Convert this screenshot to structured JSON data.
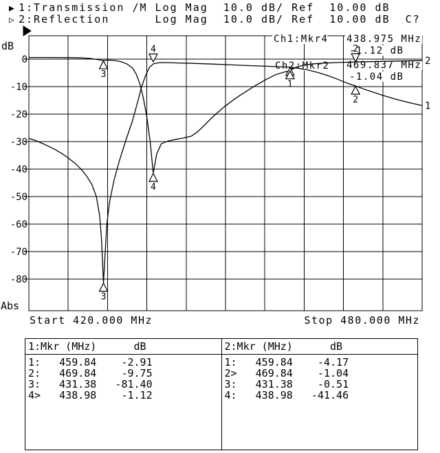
{
  "title_area": {
    "line1": {
      "marker": "▶",
      "text": "1:Transmission /M Log Mag  10.0 dB/ Ref  10.00 dB"
    },
    "line2": {
      "marker": "▷",
      "text": "2:Reflection      Log Mag  10.0 dB/ Ref  10.00 dB  C?"
    }
  },
  "readout": {
    "ch1": {
      "label": "Ch1:Mkr4",
      "freq": "438.975 MHz",
      "value": "-1.12 dB"
    },
    "ch2": {
      "label": "Ch2:Mkr2",
      "freq": "469.837 MHz",
      "value": "-1.04 dB"
    }
  },
  "axis": {
    "y_unit": "dB",
    "y_bottom": "Abs",
    "start_label": "Start 420.000 MHz",
    "stop_label": "Stop 480.000 MHz"
  },
  "chart_data": {
    "type": "line",
    "x": {
      "min": 420,
      "max": 480,
      "unit": "MHz",
      "divisions": 10
    },
    "y": {
      "ticks": [
        0,
        -10,
        -20,
        -30,
        -40,
        -50,
        -60,
        -70,
        -80
      ],
      "db_per_div": 10,
      "ref_db": 10
    },
    "series": [
      {
        "name": "1: Transmission",
        "end_label": "1",
        "points": [
          [
            420,
            -28.8
          ],
          [
            421,
            -29.6
          ],
          [
            422,
            -30.6
          ],
          [
            423,
            -31.7
          ],
          [
            424,
            -32.9
          ],
          [
            425,
            -34.3
          ],
          [
            426,
            -35.9
          ],
          [
            427,
            -37.8
          ],
          [
            428,
            -40.1
          ],
          [
            428.8,
            -42.5
          ],
          [
            429.6,
            -45.5
          ],
          [
            430.3,
            -50
          ],
          [
            430.8,
            -57
          ],
          [
            431.1,
            -66
          ],
          [
            431.38,
            -81.4
          ],
          [
            431.65,
            -70
          ],
          [
            431.9,
            -60
          ],
          [
            432.3,
            -52
          ],
          [
            433,
            -44
          ],
          [
            433.8,
            -37
          ],
          [
            434.8,
            -29.5
          ],
          [
            435.8,
            -22.5
          ],
          [
            436.6,
            -15.5
          ],
          [
            437.2,
            -10
          ],
          [
            437.8,
            -6
          ],
          [
            438.4,
            -3
          ],
          [
            439,
            -1.7
          ],
          [
            440,
            -1.25
          ],
          [
            442,
            -1.35
          ],
          [
            445,
            -1.55
          ],
          [
            448,
            -1.8
          ],
          [
            451,
            -2.1
          ],
          [
            454,
            -2.4
          ],
          [
            457,
            -2.65
          ],
          [
            459.84,
            -2.91
          ],
          [
            461,
            -3.3
          ],
          [
            462.5,
            -3.9
          ],
          [
            464,
            -4.8
          ],
          [
            465.5,
            -5.9
          ],
          [
            467,
            -7.2
          ],
          [
            468.5,
            -8.7
          ],
          [
            469.84,
            -9.75
          ],
          [
            471,
            -10.8
          ],
          [
            472.5,
            -12
          ],
          [
            474,
            -13.2
          ],
          [
            476,
            -14.6
          ],
          [
            478,
            -15.8
          ],
          [
            480,
            -16.9
          ]
        ]
      },
      {
        "name": "2: Reflection",
        "end_label": "2",
        "points": [
          [
            420,
            0.6
          ],
          [
            423,
            0.6
          ],
          [
            426,
            0.55
          ],
          [
            428,
            0.45
          ],
          [
            429.5,
            0.2
          ],
          [
            430.4,
            -0.15
          ],
          [
            431.38,
            -0.51
          ],
          [
            432.2,
            -0.35
          ],
          [
            433,
            -0.5
          ],
          [
            434,
            -0.9
          ],
          [
            435,
            -1.8
          ],
          [
            435.8,
            -3.2
          ],
          [
            436.4,
            -5.5
          ],
          [
            437,
            -9.5
          ],
          [
            437.5,
            -14.5
          ],
          [
            438,
            -21
          ],
          [
            438.5,
            -30
          ],
          [
            438.98,
            -41.46
          ],
          [
            439.5,
            -34.5
          ],
          [
            440.2,
            -30.8
          ],
          [
            441.2,
            -29.8
          ],
          [
            442.4,
            -29.2
          ],
          [
            443.6,
            -28.7
          ],
          [
            444.8,
            -28
          ],
          [
            445.8,
            -26.3
          ],
          [
            446.8,
            -24
          ],
          [
            447.8,
            -21.6
          ],
          [
            448.8,
            -19.4
          ],
          [
            449.9,
            -17.2
          ],
          [
            451,
            -15.2
          ],
          [
            452.2,
            -13.2
          ],
          [
            453.5,
            -11.2
          ],
          [
            454.8,
            -9.3
          ],
          [
            456.2,
            -7.4
          ],
          [
            457.6,
            -5.7
          ],
          [
            458.8,
            -4.8
          ],
          [
            459.84,
            -4.17
          ],
          [
            460.8,
            -2.9
          ],
          [
            462,
            -2.15
          ],
          [
            463.5,
            -1.7
          ],
          [
            465,
            -1.45
          ],
          [
            467,
            -1.25
          ],
          [
            468.5,
            -1.12
          ],
          [
            469.84,
            -1.04
          ],
          [
            472,
            -0.92
          ],
          [
            474.5,
            -0.8
          ],
          [
            477,
            -0.68
          ],
          [
            480,
            -0.55
          ]
        ]
      }
    ],
    "markers": [
      {
        "n": "3",
        "series": 1,
        "f": 431.38,
        "db": -0.51,
        "active": false,
        "label": "3"
      },
      {
        "n": "3",
        "series": 0,
        "f": 431.38,
        "db": -81.4,
        "active": false,
        "label": "3"
      },
      {
        "n": "4",
        "series": 0,
        "f": 438.975,
        "db": -1.12,
        "active": true,
        "label": "4"
      },
      {
        "n": "4",
        "series": 1,
        "f": 438.98,
        "db": -41.46,
        "active": false,
        "label": "4"
      },
      {
        "n": "1",
        "series": 0,
        "f": 459.84,
        "db": -2.91,
        "active": false,
        "label": ""
      },
      {
        "n": "1",
        "series": 1,
        "f": 459.84,
        "db": -4.17,
        "active": false,
        "label": "1"
      },
      {
        "n": "2",
        "series": 0,
        "f": 469.84,
        "db": -9.75,
        "active": false,
        "label": "2"
      },
      {
        "n": "2",
        "series": 1,
        "f": 469.837,
        "db": -1.04,
        "active": true,
        "label": "2"
      }
    ]
  },
  "tables": [
    {
      "header": {
        "label": "1:Mkr (MHz)",
        "unit": "dB"
      },
      "rows": [
        {
          "n": "1:",
          "f": "459.84",
          "v": "-2.91"
        },
        {
          "n": "2:",
          "f": "469.84",
          "v": "-9.75"
        },
        {
          "n": "3:",
          "f": "431.38",
          "v": "-81.40"
        },
        {
          "n": "4>",
          "f": "438.98",
          "v": "-1.12"
        }
      ]
    },
    {
      "header": {
        "label": "2:Mkr (MHz)",
        "unit": "dB"
      },
      "rows": [
        {
          "n": "1:",
          "f": "459.84",
          "v": "-4.17"
        },
        {
          "n": "2>",
          "f": "469.84",
          "v": "-1.04"
        },
        {
          "n": "3:",
          "f": "431.38",
          "v": "-0.51"
        },
        {
          "n": "4:",
          "f": "438.98",
          "v": "-41.46"
        }
      ]
    }
  ]
}
